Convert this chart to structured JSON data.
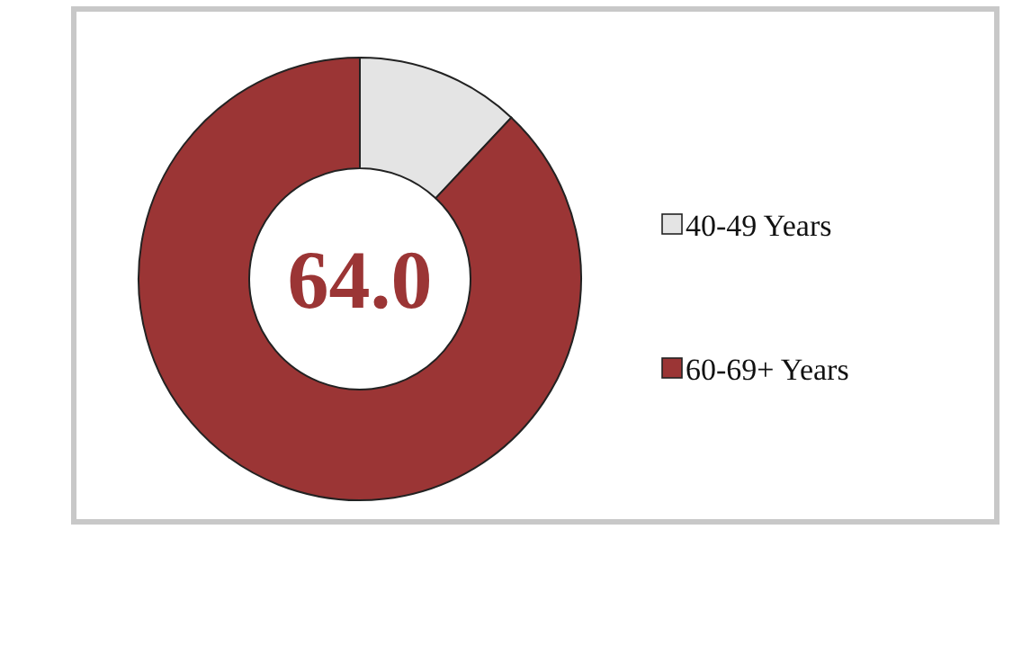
{
  "chart_data": {
    "type": "donut",
    "categories": [
      "40-49 Years",
      "60-69+ Years"
    ],
    "values": [
      12,
      88
    ],
    "colors": [
      "#e4e4e4",
      "#9b3535"
    ],
    "annotations": [
      "64.0"
    ],
    "legend": "right"
  }
}
